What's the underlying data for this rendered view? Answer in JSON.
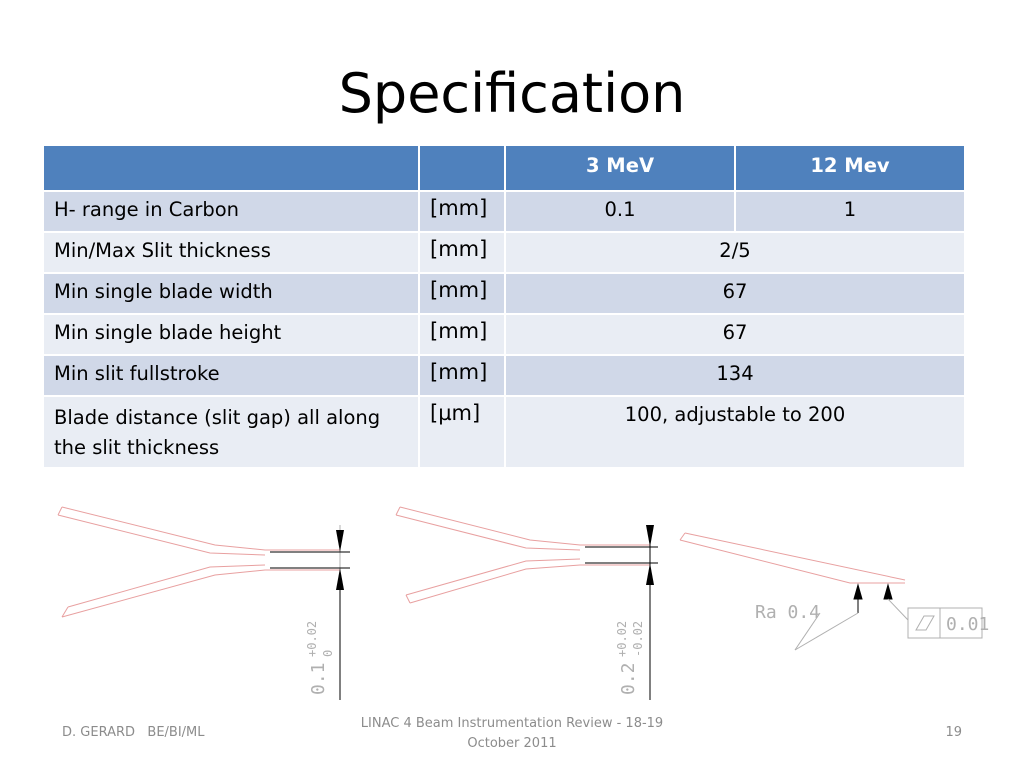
{
  "slide": {
    "title": "Specification"
  },
  "table": {
    "headers": [
      "",
      "",
      "3 MeV",
      "12 Mev"
    ],
    "rows": [
      {
        "param": "H- range in Carbon",
        "unit": "[mm]",
        "v3": "0.1",
        "v12": "1"
      },
      {
        "param": "Min/Max Slit thickness",
        "unit": "[mm]",
        "both": "2/5"
      },
      {
        "param": "Min single blade width",
        "unit": "[mm]",
        "both": "67"
      },
      {
        "param": "Min single blade height",
        "unit": "[mm]",
        "both": "67"
      },
      {
        "param": "Min slit fullstroke",
        "unit": "[mm]",
        "both": "134"
      },
      {
        "param": "Blade distance (slit gap) all along the slit thickness",
        "unit": "[µm]",
        "both": "100, adjustable to 200"
      }
    ]
  },
  "drawing": {
    "dim1_main": "0.1",
    "dim1_tol_upper": "+0.02",
    "dim1_tol_lower": "0",
    "dim2_main": "0.2",
    "dim2_tol_upper": "+0.02",
    "dim2_tol_lower": "-0.02",
    "roughness_label": "Ra 0.4",
    "flatness_value": "0.01",
    "line_color": "#e8a0a0",
    "dim_color": "#b0b0b0"
  },
  "footer": {
    "author": "D. GERARD   BE/BI/ML",
    "event": "LINAC 4 Beam Instrumentation Review  -  18-19 October 2011",
    "page": "19"
  }
}
